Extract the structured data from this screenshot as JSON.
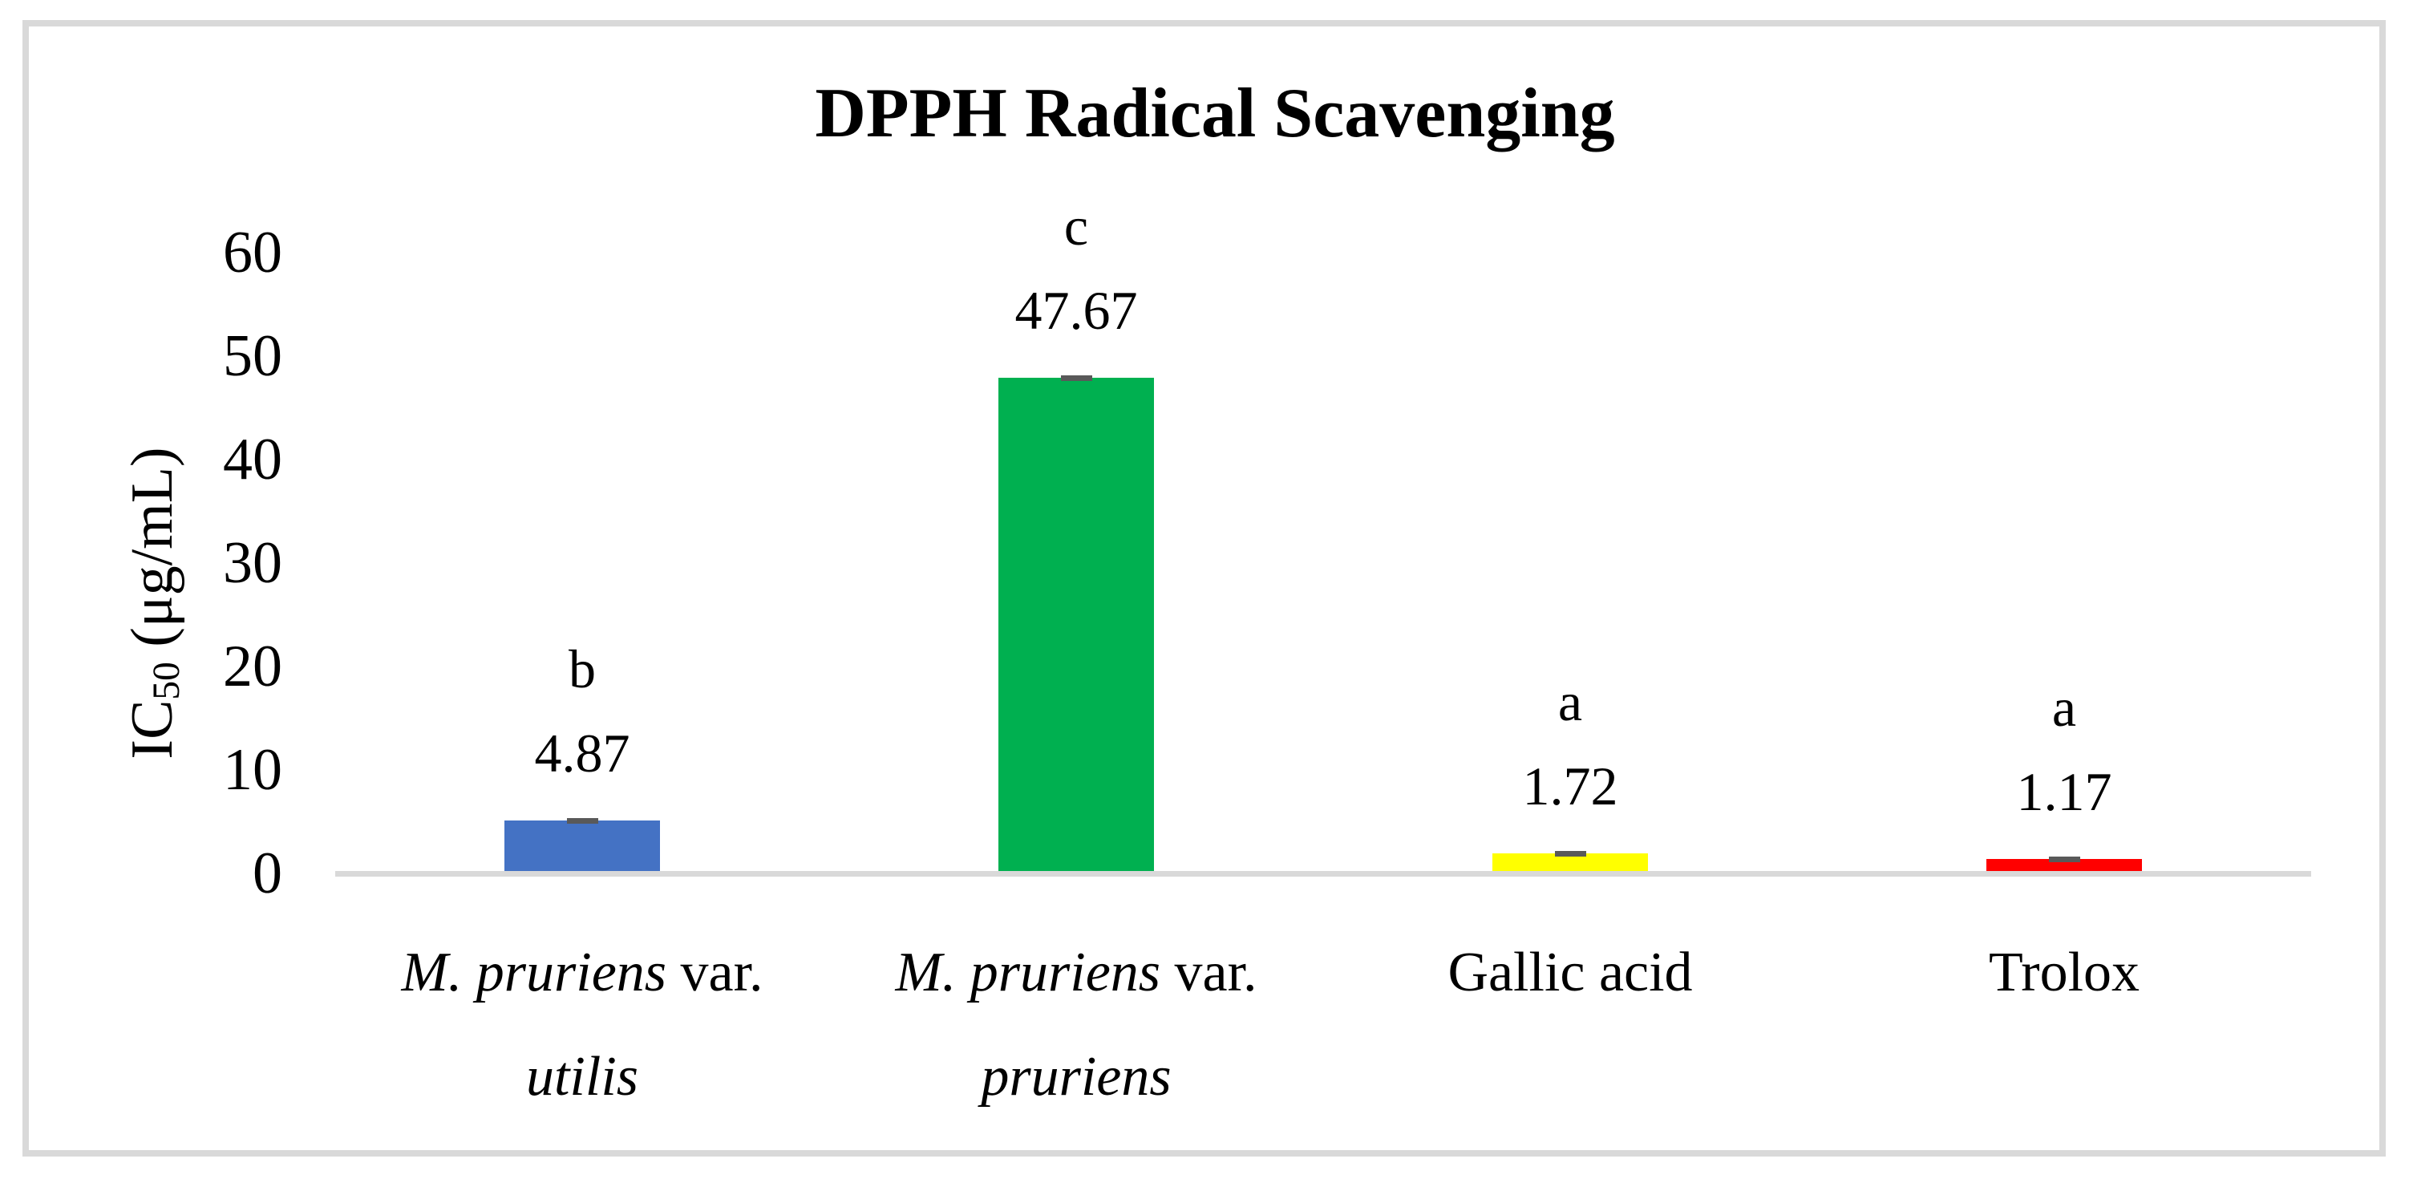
{
  "figure": {
    "background_color": "#FFFFFF",
    "frame_border_color": "#D9D9D9"
  },
  "chart_data": {
    "type": "bar",
    "title": "DPPH Radical Scavenging",
    "xlabel": "",
    "ylabel": "IC50 (μg/mL)",
    "ylabel_parts": {
      "prefix": "IC",
      "subscript": "50",
      "suffix": " (μg/mL)"
    },
    "ylim": [
      0,
      60
    ],
    "yticks": [
      0,
      10,
      20,
      30,
      40,
      50,
      60
    ],
    "grid": false,
    "legend": false,
    "axis_line_color": "#D9D9D9",
    "categories": [
      "M. pruriens var. utilis",
      "M. pruriens var. pruriens",
      "Gallic acid",
      "Trolox"
    ],
    "series": [
      {
        "name": "IC50 (μg/mL)",
        "values": [
          4.87,
          47.67,
          1.72,
          1.17
        ]
      }
    ],
    "error_bars": {
      "visible": true,
      "style": "small sd cap at bar top",
      "color": "#595959"
    },
    "bars": [
      {
        "value": 4.87,
        "value_label": "4.87",
        "sig_letter": "b",
        "color": "#4472C4",
        "category_lines": [
          [
            {
              "text": "M. pruriens",
              "italic": true
            },
            {
              "text": " var.",
              "italic": false
            }
          ],
          [
            {
              "text": "utilis",
              "italic": true
            }
          ]
        ]
      },
      {
        "value": 47.67,
        "value_label": "47.67",
        "sig_letter": "c",
        "color": "#00B050",
        "category_lines": [
          [
            {
              "text": "M. pruriens",
              "italic": true
            },
            {
              "text": " var.",
              "italic": false
            }
          ],
          [
            {
              "text": "pruriens",
              "italic": true
            }
          ]
        ]
      },
      {
        "value": 1.72,
        "value_label": "1.72",
        "sig_letter": "a",
        "color": "#FFFF00",
        "category_lines": [
          [
            {
              "text": "Gallic acid",
              "italic": false
            }
          ]
        ]
      },
      {
        "value": 1.17,
        "value_label": "1.17",
        "sig_letter": "a",
        "color": "#FF0000",
        "category_lines": [
          [
            {
              "text": "Trolox",
              "italic": false
            }
          ]
        ]
      }
    ]
  }
}
